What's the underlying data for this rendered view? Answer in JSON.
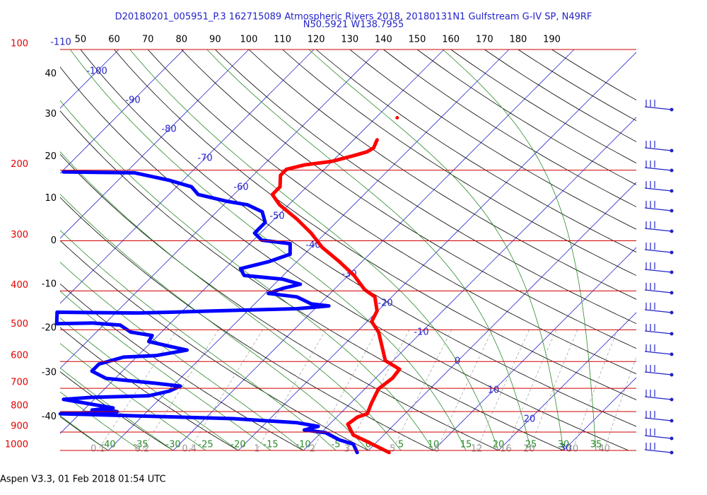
{
  "chart_data": {
    "type": "skew-t",
    "title": "D20180201_005951_P.3 162715089 Atmospheric Rivers 2018, 20180131N1 Gulfstream G-IV SP, N49RF",
    "subtitle": "N50.5921 W138.7955",
    "footer": "Aspen V3.3, 01 Feb 2018  01:54 UTC",
    "ylim": [
      1000,
      100
    ],
    "log_y": true,
    "yticks": [
      100,
      200,
      300,
      400,
      500,
      600,
      700,
      800,
      900,
      1000
    ],
    "isotherms": [
      -110,
      -100,
      -90,
      -80,
      -70,
      -60,
      -50,
      -40,
      -30,
      -20,
      -10,
      0,
      10,
      20,
      30
    ],
    "dry_adiabats": [
      40,
      30,
      20,
      10,
      0,
      -10,
      -20,
      -30,
      -40,
      50,
      60,
      70,
      80,
      90,
      100,
      110,
      120,
      130,
      140,
      150,
      160,
      170,
      180,
      190
    ],
    "moist_adiabats": [
      5,
      10,
      15,
      20,
      25,
      30,
      35,
      0,
      -5,
      -10,
      -15,
      -20,
      -25,
      -30,
      -35,
      -40
    ],
    "mixing_ratios": [
      0.1,
      0.2,
      0.4,
      1,
      2,
      3,
      5,
      8,
      12,
      16,
      20,
      30,
      40
    ],
    "series": [
      {
        "color": "#ff0000",
        "pressure": [
          148,
          null,
          168,
          176,
          180,
          184,
          190,
          194,
          199,
          206,
          220,
          230,
          244,
          265,
          287,
          311,
          338,
          366,
          397,
          414,
          449,
          477,
          507,
          550,
          597,
          627,
          660,
          702,
          762,
          810,
          826,
          860,
          915,
          952,
          1012
        ],
        "values": [
          -46.7,
          null,
          -46.4,
          -45.7,
          -46.1,
          -47.6,
          -50,
          -53.7,
          -55.8,
          -55.8,
          -54.1,
          -54.1,
          -51.4,
          -46.5,
          -42.2,
          -38.4,
          -33.5,
          -29.1,
          -25.3,
          -22.6,
          -20.1,
          -19.3,
          -16.6,
          -13.9,
          -11.2,
          -7.7,
          -7.4,
          -7.9,
          -6.8,
          -5.8,
          -6.8,
          -7.2,
          -4.7,
          -1.4,
          3.5
        ]
      },
      {
        "color": "#0000ff",
        "pressure": [
          202,
          203,
          212,
          220,
          230,
          239,
          244,
          254,
          270,
          287,
          299,
          305,
          324,
          338,
          352,
          366,
          374,
          385,
          394,
          406,
          414,
          431,
          436,
          443,
          445,
          449,
          452,
          454,
          452,
          483,
          481,
          487,
          507,
          517,
          535,
          550,
          562,
          580,
          585,
          609,
          634,
          661,
          680,
          691,
          711,
          731,
          737,
          746,
          783,
          793,
          800,
          810,
          833,
          853,
          871,
          889,
          903,
          941,
          964,
          1012
        ],
        "values": [
          -89.7,
          -78.6,
          -72.1,
          -67.7,
          -65.5,
          -60.1,
          -56.3,
          -53.0,
          -50.9,
          -50.9,
          -48.7,
          -43.8,
          -42.2,
          -44.3,
          -47.6,
          -46.0,
          -39.5,
          -36.0,
          -38.0,
          -39.5,
          -34.6,
          -31.3,
          -28.3,
          -32.7,
          -37.0,
          -45.4,
          -51.7,
          -56.5,
          -69.1,
          -67.4,
          -62.1,
          -57.4,
          -54.7,
          -50.9,
          -50.5,
          -46.5,
          -43.3,
          -47.3,
          -52.0,
          -54.7,
          -54.7,
          -51.4,
          -43.0,
          -38.8,
          -39.7,
          -42.2,
          -50.7,
          -54.7,
          -45.8,
          -48.7,
          -44.6,
          -53.0,
          -25.7,
          -15.2,
          -11.4,
          -13.0,
          -9.3,
          -6.1,
          -3.3,
          -1.4
        ]
      }
    ]
  }
}
